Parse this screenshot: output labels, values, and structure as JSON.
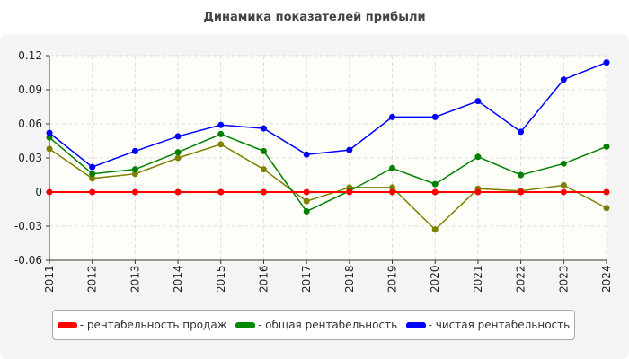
{
  "chart_data": {
    "type": "line",
    "title": "Динамика показателей прибыли",
    "x": [
      "2011",
      "2012",
      "2013",
      "2014",
      "2015",
      "2016",
      "2017",
      "2018",
      "2019",
      "2020",
      "2021",
      "2022",
      "2023",
      "2024"
    ],
    "ylim": [
      -0.06,
      0.12
    ],
    "yticks": [
      "-0.06",
      "-0.03",
      "0",
      "0.03",
      "0.06",
      "0.09",
      "0.12"
    ],
    "grid": true,
    "legend_position": "bottom",
    "series": [
      {
        "name": "- рентабельность продаж",
        "color": "#ff0000",
        "values": [
          0,
          0,
          0,
          0,
          0,
          0,
          0,
          0,
          0,
          0,
          0,
          0,
          0,
          0
        ]
      },
      {
        "name": "- общая рентабельность",
        "color": "#008000",
        "values": [
          0.048,
          0.016,
          0.02,
          0.035,
          0.051,
          0.036,
          -0.017,
          0.001,
          0.021,
          0.007,
          0.031,
          0.015,
          0.025,
          0.04
        ]
      },
      {
        "name": "- чистая рентабельность",
        "color": "#0000ff",
        "values": [
          0.052,
          0.022,
          0.036,
          0.049,
          0.059,
          0.056,
          0.033,
          0.037,
          0.066,
          0.066,
          0.08,
          0.053,
          0.099,
          0.114
        ]
      },
      {
        "color": "#808000",
        "values": [
          0.038,
          0.012,
          0.016,
          0.03,
          0.042,
          0.02,
          -0.008,
          0.004,
          0.004,
          -0.033,
          0.003,
          0.001,
          0.006,
          -0.014
        ]
      }
    ]
  }
}
